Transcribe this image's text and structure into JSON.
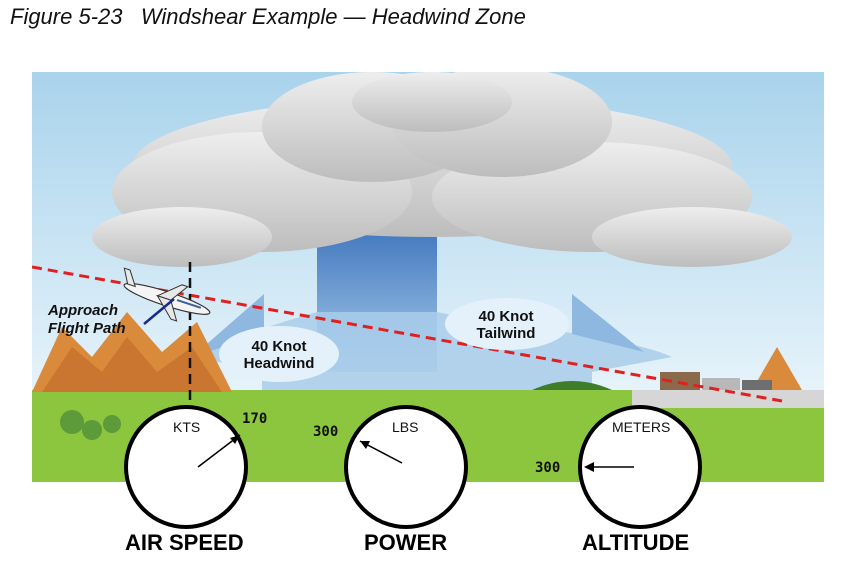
{
  "figure": {
    "title": "Figure 5-23   Windshear Example — Headwind Zone"
  },
  "scene": {
    "approach_label_line1": "Approach",
    "approach_label_line2": "Flight Path",
    "headwind_line1": "40 Knot",
    "headwind_line2": "Headwind",
    "tailwind_line1": "40 Knot",
    "tailwind_line2": "Tailwind"
  },
  "gauges": [
    {
      "unit": "KTS",
      "value": "170",
      "label": "AIR SPEED"
    },
    {
      "unit": "LBS",
      "value": "300",
      "label": "POWER"
    },
    {
      "unit": "METERS",
      "value": "300",
      "label": "ALTITUDE"
    }
  ],
  "colors": {
    "sky": "#b9dcef",
    "cloud": "#d9d9d9",
    "downdraft": "#4f86c6",
    "ground": "#8cc63f",
    "flight_path": "#e02020"
  }
}
